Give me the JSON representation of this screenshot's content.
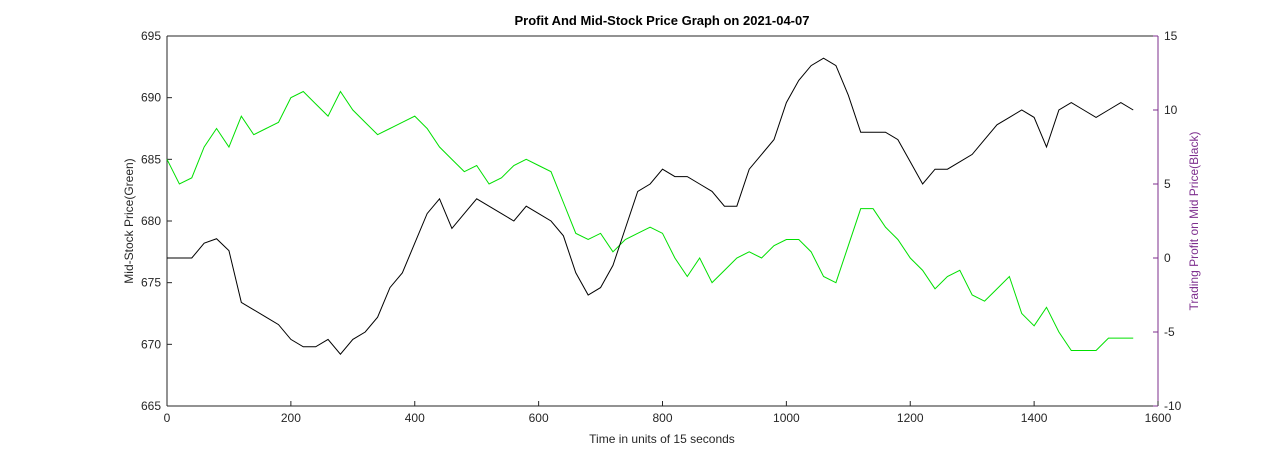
{
  "chart_data": {
    "type": "line",
    "title": "Profit And Mid-Stock Price Graph on 2021-04-07",
    "x_label": "Time in units of 15 seconds",
    "y_label": "Mid-Stock Price(Green)",
    "y2_label": "Trading Profit on Mid Price(Black)",
    "x": [
      0,
      20,
      40,
      60,
      80,
      100,
      120,
      140,
      160,
      180,
      200,
      220,
      240,
      260,
      280,
      300,
      320,
      340,
      360,
      380,
      400,
      420,
      440,
      460,
      480,
      500,
      520,
      540,
      560,
      580,
      600,
      620,
      640,
      660,
      680,
      700,
      720,
      740,
      760,
      780,
      800,
      820,
      840,
      860,
      880,
      900,
      920,
      940,
      960,
      980,
      1000,
      1020,
      1040,
      1060,
      1080,
      1100,
      1120,
      1140,
      1160,
      1180,
      1200,
      1220,
      1240,
      1260,
      1280,
      1300,
      1320,
      1340,
      1360,
      1380,
      1400,
      1420,
      1440,
      1460,
      1480,
      1500,
      1520,
      1540,
      1560
    ],
    "series": [
      {
        "color": "#00e000",
        "values": [
          685,
          683,
          683.5,
          686,
          687.5,
          686,
          688.5,
          687,
          687.5,
          688,
          690,
          690.5,
          689.5,
          688.5,
          690.5,
          689,
          688,
          687,
          687.5,
          688,
          688.5,
          687.5,
          686,
          685,
          684,
          684.5,
          683,
          683.5,
          684.5,
          685,
          684.5,
          684,
          681.5,
          679,
          678.5,
          679,
          677.5,
          678.5,
          679,
          679.5,
          679,
          677,
          675.5,
          677,
          675,
          676,
          677,
          677.5,
          677,
          678,
          678.5,
          678.5,
          677.5,
          675.5,
          675,
          678,
          681,
          681,
          679.5,
          678.5,
          677,
          676,
          674.5,
          675.5,
          676,
          674,
          673.5,
          674.5,
          675.5,
          672.5,
          671.5,
          673,
          671,
          669.5,
          669.5,
          669.5,
          670.5,
          670.5,
          670.5
        ]
      },
      {
        "color": "#000000",
        "axis": "y2",
        "values": [
          0,
          0,
          0,
          1,
          1.3,
          0.5,
          -3,
          -3.5,
          -4,
          -4.5,
          -5.5,
          -6,
          -6,
          -5.5,
          -6.5,
          -5.5,
          -5,
          -4,
          -2,
          -1,
          1,
          3,
          4,
          2,
          3,
          4,
          3.5,
          3,
          2.5,
          3.5,
          3,
          2.5,
          1.5,
          -1,
          -2.5,
          -2,
          -0.5,
          2,
          4.5,
          5,
          6,
          5.5,
          5.5,
          5,
          4.5,
          3.5,
          3.5,
          6,
          7,
          8,
          10.5,
          12,
          13,
          13.5,
          13,
          11,
          8.5,
          8.5,
          8.5,
          8,
          6.5,
          5,
          6,
          6,
          6.5,
          7,
          8,
          9,
          9.5,
          10,
          9.5,
          7.5,
          10,
          10.5,
          10,
          9.5,
          10,
          10.5,
          10
        ]
      }
    ],
    "xlim": [
      0,
      1600
    ],
    "xticks": [
      0,
      200,
      400,
      600,
      800,
      1000,
      1200,
      1400,
      1600
    ],
    "ylim": [
      665,
      695
    ],
    "yticks": [
      665,
      670,
      675,
      680,
      685,
      690,
      695
    ],
    "y2lim": [
      -10,
      15
    ],
    "y2ticks": [
      -10,
      -5,
      0,
      5,
      10,
      15
    ],
    "y2color": "#7e2f8e"
  }
}
